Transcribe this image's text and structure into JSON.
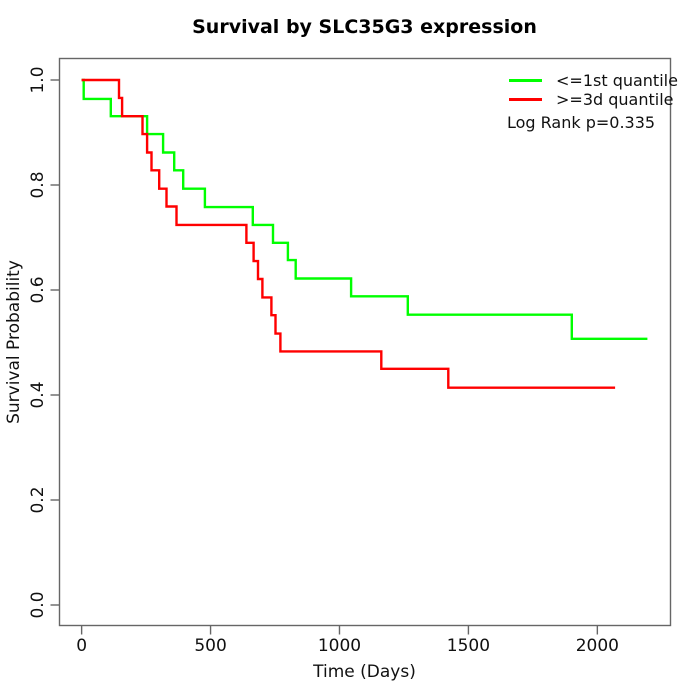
{
  "title": "Survival by SLC35G3 expression",
  "chart_data": {
    "type": "line",
    "subtype": "kaplan-meier-step",
    "title": "Survival by SLC35G3 expression",
    "xlabel": "Time (Days)",
    "ylabel": "Survival Probability",
    "xlim": [
      0,
      2194
    ],
    "ylim": [
      0,
      1
    ],
    "x_ticks": [
      "0",
      "500",
      "1000",
      "1500",
      "2000"
    ],
    "y_ticks": [
      "0.0",
      "0.2",
      "0.4",
      "0.6",
      "0.8",
      "1.0"
    ],
    "grid": false,
    "legend_position": "top-right-inside",
    "annotation": "Log Rank p=0.335",
    "axis_color": "#666666",
    "series": [
      {
        "name": "<=1st quantile",
        "color": "#00ff00",
        "step": true,
        "points": [
          [
            0,
            1.0
          ],
          [
            8,
            0.964
          ],
          [
            113,
            0.931
          ],
          [
            254,
            0.897
          ],
          [
            316,
            0.862
          ],
          [
            359,
            0.828
          ],
          [
            394,
            0.793
          ],
          [
            478,
            0.758
          ],
          [
            664,
            0.724
          ],
          [
            742,
            0.69
          ],
          [
            800,
            0.657
          ],
          [
            830,
            0.622
          ],
          [
            1045,
            0.588
          ],
          [
            1265,
            0.553
          ],
          [
            1901,
            0.507
          ],
          [
            2194,
            0.507
          ]
        ]
      },
      {
        "name": ">=3d quantile",
        "color": "#ff0000",
        "step": true,
        "points": [
          [
            0,
            1.0
          ],
          [
            145,
            0.966
          ],
          [
            157,
            0.931
          ],
          [
            236,
            0.897
          ],
          [
            254,
            0.862
          ],
          [
            271,
            0.828
          ],
          [
            301,
            0.793
          ],
          [
            329,
            0.759
          ],
          [
            368,
            0.724
          ],
          [
            639,
            0.69
          ],
          [
            667,
            0.655
          ],
          [
            684,
            0.621
          ],
          [
            701,
            0.586
          ],
          [
            736,
            0.552
          ],
          [
            752,
            0.517
          ],
          [
            771,
            0.483
          ],
          [
            1162,
            0.45
          ],
          [
            1422,
            0.414
          ],
          [
            2069,
            0.414
          ]
        ]
      }
    ]
  }
}
